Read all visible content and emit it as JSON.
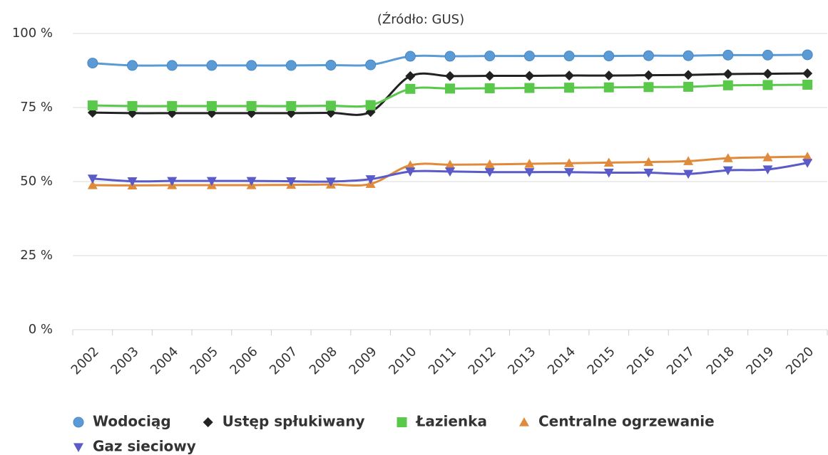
{
  "chart_data": {
    "type": "line",
    "title": "(Źródło: GUS)",
    "categories": [
      "2002",
      "2003",
      "2004",
      "2005",
      "2006",
      "2007",
      "2008",
      "2009",
      "2010",
      "2011",
      "2012",
      "2013",
      "2014",
      "2015",
      "2016",
      "2017",
      "2018",
      "2019",
      "2020"
    ],
    "series": [
      {
        "name": "Wodociąg",
        "color": "#5b9bd5",
        "marker": "circle",
        "values": [
          90,
          89.2,
          89.2,
          89.2,
          89.2,
          89.2,
          89.3,
          89.4,
          92.3,
          92.3,
          92.4,
          92.4,
          92.4,
          92.4,
          92.5,
          92.5,
          92.7,
          92.7,
          92.8
        ]
      },
      {
        "name": "Ustęp spłukiwany",
        "color": "#222222",
        "marker": "diamond",
        "values": [
          73.3,
          73.1,
          73.1,
          73.1,
          73.1,
          73.1,
          73.2,
          73.5,
          85.6,
          85.6,
          85.7,
          85.7,
          85.8,
          85.8,
          85.9,
          86,
          86.3,
          86.4,
          86.5
        ]
      },
      {
        "name": "Łazienka",
        "color": "#5ac84a",
        "marker": "square",
        "values": [
          75.7,
          75.5,
          75.5,
          75.5,
          75.5,
          75.5,
          75.6,
          75.8,
          81.3,
          81.4,
          81.5,
          81.6,
          81.7,
          81.8,
          81.9,
          82,
          82.5,
          82.6,
          82.7
        ]
      },
      {
        "name": "Centralne ogrzewanie",
        "color": "#e08a3c",
        "marker": "triangle",
        "values": [
          48.8,
          48.7,
          48.8,
          48.8,
          48.8,
          48.9,
          49,
          49.2,
          55.5,
          55.7,
          55.8,
          56,
          56.2,
          56.4,
          56.6,
          56.9,
          57.9,
          58.2,
          58.4
        ]
      },
      {
        "name": "Gaz sieciowy",
        "color": "#5a5ac8",
        "marker": "triangle-down",
        "values": [
          51,
          50.1,
          50.2,
          50.2,
          50.2,
          50.1,
          50,
          50.8,
          53.4,
          53.4,
          53.2,
          53.2,
          53.2,
          53,
          53,
          52.6,
          53.8,
          54.1,
          56.3
        ]
      }
    ],
    "ylim": [
      0,
      100
    ],
    "yticks": [
      {
        "value": 0,
        "label": "0 %"
      },
      {
        "value": 25,
        "label": "25 %"
      },
      {
        "value": 50,
        "label": "50 %"
      },
      {
        "value": 75,
        "label": "75 %"
      },
      {
        "value": 100,
        "label": "100 %"
      }
    ],
    "grid": true
  }
}
